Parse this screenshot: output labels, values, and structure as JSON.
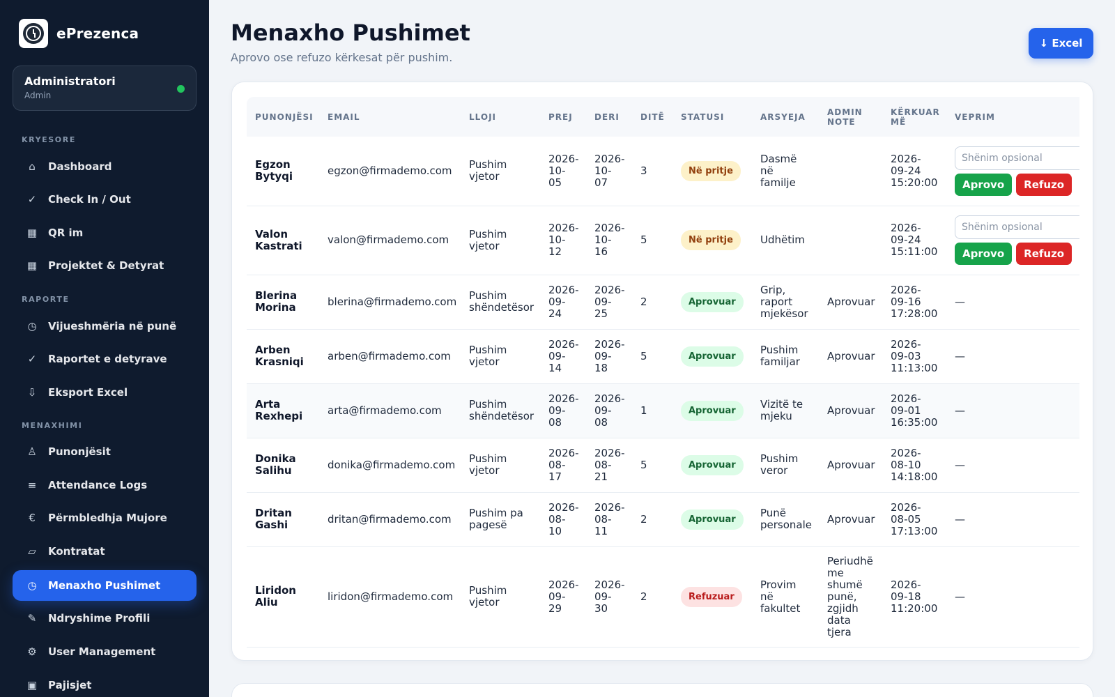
{
  "app": {
    "name": "ePrezenca"
  },
  "user": {
    "name": "Administratori",
    "role": "Admin"
  },
  "sidebar": {
    "sections": [
      {
        "label": "KRYESORE",
        "items": [
          {
            "label": "Dashboard",
            "icon": "⌂",
            "icon_name": "home-icon"
          },
          {
            "label": "Check In / Out",
            "icon": "✓",
            "icon_name": "check-icon"
          },
          {
            "label": "QR im",
            "icon": "▦",
            "icon_name": "qr-code-icon"
          },
          {
            "label": "Projektet & Detyrat",
            "icon": "▦",
            "icon_name": "grid-icon"
          }
        ]
      },
      {
        "label": "RAPORTE",
        "items": [
          {
            "label": "Vijueshmëria në punë",
            "icon": "◷",
            "icon_name": "clock-icon"
          },
          {
            "label": "Raportet e detyrave",
            "icon": "✓",
            "icon_name": "check-icon"
          },
          {
            "label": "Eksport Excel",
            "icon": "⇩",
            "icon_name": "download-icon"
          }
        ]
      },
      {
        "label": "MENAXHIMI",
        "items": [
          {
            "label": "Punonjësit",
            "icon": "♙",
            "icon_name": "person-icon"
          },
          {
            "label": "Attendance Logs",
            "icon": "≡",
            "icon_name": "list-icon"
          },
          {
            "label": "Përmbledhja Mujore",
            "icon": "€",
            "icon_name": "euro-icon"
          },
          {
            "label": "Kontratat",
            "icon": "▱",
            "icon_name": "document-icon"
          },
          {
            "label": "Menaxho Pushimet",
            "icon": "◷",
            "icon_name": "clock-icon",
            "active": true
          },
          {
            "label": "Ndryshime Profili",
            "icon": "✎",
            "icon_name": "pencil-icon"
          },
          {
            "label": "User Management",
            "icon": "⚙",
            "icon_name": "gear-icon"
          },
          {
            "label": "Pajisjet",
            "icon": "▣",
            "icon_name": "device-icon"
          }
        ]
      }
    ]
  },
  "header": {
    "title": "Menaxho Pushimet",
    "subtitle": "Aprovo ose refuzo kërkesat për pushim.",
    "excel_label": "↓ Excel"
  },
  "table": {
    "columns": [
      "PUNONJËSI",
      "EMAIL",
      "LLOJI",
      "PREJ",
      "DERI",
      "DITË",
      "STATUSI",
      "ARSYEJA",
      "ADMIN NOTE",
      "KËRKUAR MË",
      "VEPRIM"
    ],
    "note_placeholder": "Shënim opsional",
    "approve_label": "Aprovo",
    "reject_label": "Refuzo",
    "rows": [
      {
        "employee": "Egzon Bytyqi",
        "email": "egzon@firmademo.com",
        "type": "Pushim vjetor",
        "from": "2026-10-05",
        "to": "2026-10-07",
        "days": "3",
        "status": "Në pritje",
        "status_kind": "pending",
        "reason": "Dasmë në familje",
        "admin_note": "",
        "requested": "2026-09-24 15:20:00",
        "action": ""
      },
      {
        "employee": "Valon Kastrati",
        "email": "valon@firmademo.com",
        "type": "Pushim vjetor",
        "from": "2026-10-12",
        "to": "2026-10-16",
        "days": "5",
        "status": "Në pritje",
        "status_kind": "pending",
        "reason": "Udhëtim",
        "admin_note": "",
        "requested": "2026-09-24 15:11:00",
        "action": ""
      },
      {
        "employee": "Blerina Morina",
        "email": "blerina@firmademo.com",
        "type": "Pushim shëndetësor",
        "from": "2026-09-24",
        "to": "2026-09-25",
        "days": "2",
        "status": "Aprovuar",
        "status_kind": "approved",
        "reason": "Grip, raport mjekësor",
        "admin_note": "Aprovuar",
        "requested": "2026-09-16 17:28:00",
        "action": "—"
      },
      {
        "employee": "Arben Krasniqi",
        "email": "arben@firmademo.com",
        "type": "Pushim vjetor",
        "from": "2026-09-14",
        "to": "2026-09-18",
        "days": "5",
        "status": "Aprovuar",
        "status_kind": "approved",
        "reason": "Pushim familjar",
        "admin_note": "Aprovuar",
        "requested": "2026-09-03 11:13:00",
        "action": "—"
      },
      {
        "employee": "Arta Rexhepi",
        "email": "arta@firmademo.com",
        "type": "Pushim shëndetësor",
        "from": "2026-09-08",
        "to": "2026-09-08",
        "days": "1",
        "status": "Aprovuar",
        "status_kind": "approved",
        "reason": "Vizitë te mjeku",
        "admin_note": "Aprovuar",
        "requested": "2026-09-01 16:35:00",
        "action": "—"
      },
      {
        "employee": "Donika Salihu",
        "email": "donika@firmademo.com",
        "type": "Pushim vjetor",
        "from": "2026-08-17",
        "to": "2026-08-21",
        "days": "5",
        "status": "Aprovuar",
        "status_kind": "approved",
        "reason": "Pushim veror",
        "admin_note": "Aprovuar",
        "requested": "2026-08-10 14:18:00",
        "action": "—"
      },
      {
        "employee": "Dritan Gashi",
        "email": "dritan@firmademo.com",
        "type": "Pushim pa pagesë",
        "from": "2026-08-10",
        "to": "2026-08-11",
        "days": "2",
        "status": "Aprovuar",
        "status_kind": "approved",
        "reason": "Punë personale",
        "admin_note": "Aprovuar",
        "requested": "2026-08-05 17:13:00",
        "action": "—"
      },
      {
        "employee": "Liridon Aliu",
        "email": "liridon@firmademo.com",
        "type": "Pushim vjetor",
        "from": "2026-09-29",
        "to": "2026-09-30",
        "days": "2",
        "status": "Refuzuar",
        "status_kind": "rejected",
        "reason": "Provim në fakultet",
        "admin_note": "Periudhë me shumë punë, zgjidh data tjera",
        "requested": "2026-09-18 11:20:00",
        "action": "—"
      }
    ]
  },
  "colors": {
    "sidebar_bg": "#0f1b2e",
    "accent": "#2563eb",
    "approve": "#16a34a",
    "reject": "#dc2626",
    "online": "#22c55e"
  }
}
